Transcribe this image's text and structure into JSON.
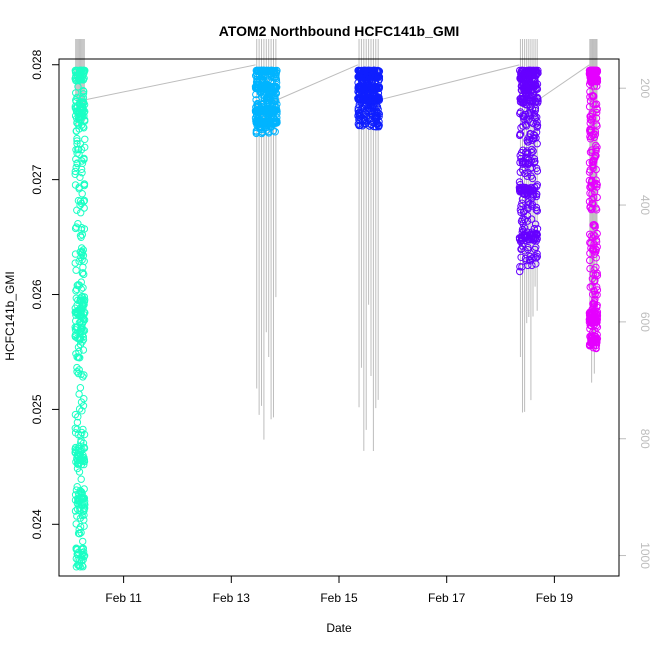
{
  "chart_data": {
    "type": "scatter",
    "title": "ATOM2 Northbound HCFC141b_GMI",
    "xlabel": "Date",
    "ylabel": "HCFC141b_GMI",
    "xlim": [
      9.8,
      20.2
    ],
    "ylim": [
      0.02355,
      0.02805
    ],
    "y2lim": [
      1035,
      150
    ],
    "x_ticks": [
      11,
      13,
      15,
      17,
      19
    ],
    "x_tick_labels": [
      "Feb 11",
      "Feb 13",
      "Feb 15",
      "Feb 17",
      "Feb 19"
    ],
    "y_ticks": [
      0.024,
      0.025,
      0.026,
      0.027,
      0.028
    ],
    "y_tick_labels": [
      "0.024",
      "0.025",
      "0.026",
      "0.027",
      "0.028"
    ],
    "y2_ticks": [
      200,
      400,
      600,
      800,
      1000
    ],
    "y2_tick_labels": [
      "200",
      "400",
      "600",
      "800",
      "1000"
    ],
    "grid": false,
    "marker": "open-circle",
    "pressure_line_color": "#bdbdbd",
    "series": [
      {
        "color": "#1affc4",
        "x_range": [
          10.1,
          10.28
        ],
        "y_range": [
          0.02363,
          0.02795
        ],
        "dense_y": [
          0.02795,
          0.0276,
          0.0259,
          0.0257,
          0.0246,
          0.0242,
          0.0237
        ],
        "pressure_min": 150,
        "pressure_max": 270
      },
      {
        "color": "#00b4ff",
        "x_range": [
          13.45,
          13.85
        ],
        "y_range": [
          0.0274,
          0.02795
        ],
        "dense_y": [
          0.02795,
          0.0278,
          0.0276,
          0.0275
        ],
        "pressure_min": 150,
        "pressure_max": 860
      },
      {
        "color": "#0f1fff",
        "x_range": [
          15.35,
          15.75
        ],
        "y_range": [
          0.02746,
          0.02795
        ],
        "dense_y": [
          0.02795,
          0.0279,
          0.0278,
          0.0277
        ],
        "pressure_min": 150,
        "pressure_max": 845
      },
      {
        "color": "#6600ff",
        "x_range": [
          18.35,
          18.7
        ],
        "y_range": [
          0.0262,
          0.02795
        ],
        "dense_y": [
          0.02795,
          0.0279,
          0.0278,
          0.0277,
          0.0269,
          0.0265
        ],
        "pressure_min": 150,
        "pressure_max": 780
      },
      {
        "color": "#e500ff",
        "x_range": [
          19.65,
          19.8
        ],
        "y_range": [
          0.02553,
          0.02795
        ],
        "dense_y": [
          0.02795,
          0.0279,
          0.0258,
          0.0256
        ],
        "pressure_min": 150,
        "pressure_max": 720
      }
    ]
  }
}
